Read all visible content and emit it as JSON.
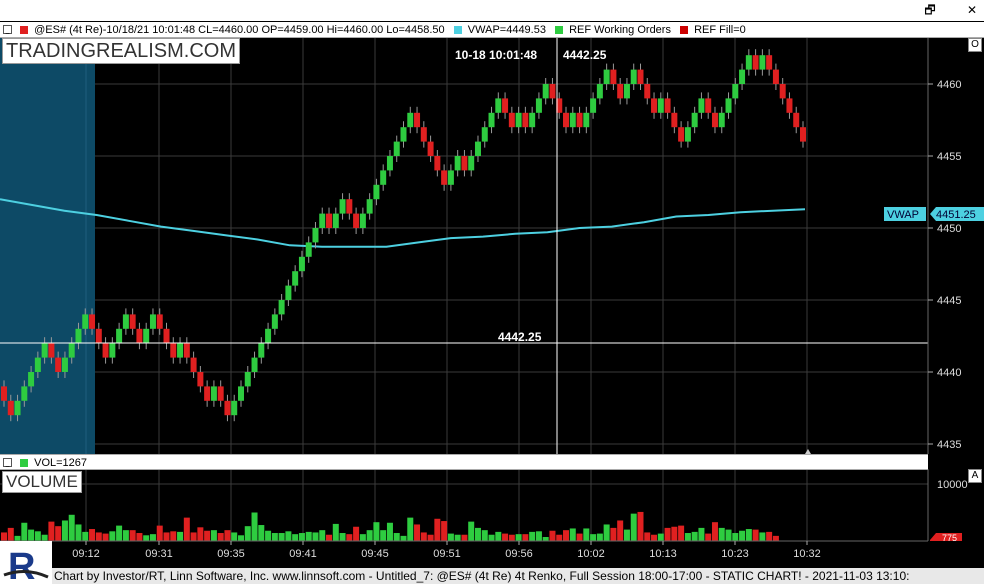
{
  "window": {
    "restore_label": "🗗",
    "close_label": "✕"
  },
  "price_header": {
    "symbol_info": "@ES# (4t Re)-10/18/21 10:01:48 CL=4460.00 OP=4459.00 Hi=4460.00 Lo=4458.50",
    "vwap": "VWAP=4449.53",
    "ref_orders": "REF Working Orders",
    "ref_fill": "REF Fill=0",
    "vwap_color": "#4dd0e1",
    "up_color": "#2ecc40",
    "down_color": "#e02020"
  },
  "watermark": "TRADINGREALISM.COM",
  "crosshair": {
    "time_label": "10-18 10:01:48",
    "price_label": "4442.25",
    "price_tag": "4442.25"
  },
  "price_axis": {
    "ticks": [
      "4460",
      "4455",
      "4450",
      "4445",
      "4440",
      "4435"
    ],
    "vwap_tag": "VWAP",
    "vwap_value": "4451.25",
    "corner": "O"
  },
  "volume_header": {
    "label": "VOL=1267"
  },
  "volume_title": "VOLUME",
  "volume_axis": {
    "ticks": [
      "10000"
    ],
    "value_tag": "775",
    "corner": "A"
  },
  "time_axis": {
    "ticks": [
      "09:12",
      "09:31",
      "09:35",
      "09:41",
      "09:45",
      "09:51",
      "09:56",
      "10:02",
      "10:13",
      "10:23",
      "10:32"
    ]
  },
  "status": "Chart by Investor/RT, Linn Software, Inc. www.linnsoft.com - Untitled_7: @ES# (4t Re) 4t Renko, Full Session 18:00-17:00 - STATIC CHART! - 2021-11-03 13:10:",
  "chart_data": {
    "type": "candlestick",
    "price_range": [
      4433.5,
      4462.5
    ],
    "renko_box": 1.0,
    "bars": [
      {
        "o": 4439,
        "c": 4438
      },
      {
        "o": 4438,
        "c": 4437
      },
      {
        "o": 4437,
        "c": 4438
      },
      {
        "o": 4438,
        "c": 4439
      },
      {
        "o": 4439,
        "c": 4440
      },
      {
        "o": 4440,
        "c": 4441
      },
      {
        "o": 4441,
        "c": 4442
      },
      {
        "o": 4442,
        "c": 4441
      },
      {
        "o": 4441,
        "c": 4440
      },
      {
        "o": 4440,
        "c": 4441
      },
      {
        "o": 4441,
        "c": 4442
      },
      {
        "o": 4442,
        "c": 4443
      },
      {
        "o": 4443,
        "c": 4444
      },
      {
        "o": 4444,
        "c": 4443
      },
      {
        "o": 4443,
        "c": 4442
      },
      {
        "o": 4442,
        "c": 4441
      },
      {
        "o": 4441,
        "c": 4442
      },
      {
        "o": 4442,
        "c": 4443
      },
      {
        "o": 4443,
        "c": 4444
      },
      {
        "o": 4444,
        "c": 4443
      },
      {
        "o": 4443,
        "c": 4442
      },
      {
        "o": 4442,
        "c": 4443
      },
      {
        "o": 4443,
        "c": 4444
      },
      {
        "o": 4444,
        "c": 4443
      },
      {
        "o": 4443,
        "c": 4442
      },
      {
        "o": 4442,
        "c": 4441
      },
      {
        "o": 4441,
        "c": 4442
      },
      {
        "o": 4442,
        "c": 4441
      },
      {
        "o": 4441,
        "c": 4440
      },
      {
        "o": 4440,
        "c": 4439
      },
      {
        "o": 4439,
        "c": 4438
      },
      {
        "o": 4438,
        "c": 4439
      },
      {
        "o": 4439,
        "c": 4438
      },
      {
        "o": 4438,
        "c": 4437
      },
      {
        "o": 4437,
        "c": 4438
      },
      {
        "o": 4438,
        "c": 4439
      },
      {
        "o": 4439,
        "c": 4440
      },
      {
        "o": 4440,
        "c": 4441
      },
      {
        "o": 4441,
        "c": 4442
      },
      {
        "o": 4442,
        "c": 4443
      },
      {
        "o": 4443,
        "c": 4444
      },
      {
        "o": 4444,
        "c": 4445
      },
      {
        "o": 4445,
        "c": 4446
      },
      {
        "o": 4446,
        "c": 4447
      },
      {
        "o": 4447,
        "c": 4448
      },
      {
        "o": 4448,
        "c": 4449
      },
      {
        "o": 4449,
        "c": 4450
      },
      {
        "o": 4450,
        "c": 4451
      },
      {
        "o": 4451,
        "c": 4450
      },
      {
        "o": 4450,
        "c": 4451
      },
      {
        "o": 4451,
        "c": 4452
      },
      {
        "o": 4452,
        "c": 4451
      },
      {
        "o": 4451,
        "c": 4450
      },
      {
        "o": 4450,
        "c": 4451
      },
      {
        "o": 4451,
        "c": 4452
      },
      {
        "o": 4452,
        "c": 4453
      },
      {
        "o": 4453,
        "c": 4454
      },
      {
        "o": 4454,
        "c": 4455
      },
      {
        "o": 4455,
        "c": 4456
      },
      {
        "o": 4456,
        "c": 4457
      },
      {
        "o": 4457,
        "c": 4458
      },
      {
        "o": 4458,
        "c": 4457
      },
      {
        "o": 4457,
        "c": 4456
      },
      {
        "o": 4456,
        "c": 4455
      },
      {
        "o": 4455,
        "c": 4454
      },
      {
        "o": 4454,
        "c": 4453
      },
      {
        "o": 4453,
        "c": 4454
      },
      {
        "o": 4454,
        "c": 4455
      },
      {
        "o": 4455,
        "c": 4454
      },
      {
        "o": 4454,
        "c": 4455
      },
      {
        "o": 4455,
        "c": 4456
      },
      {
        "o": 4456,
        "c": 4457
      },
      {
        "o": 4457,
        "c": 4458
      },
      {
        "o": 4458,
        "c": 4459
      },
      {
        "o": 4459,
        "c": 4458
      },
      {
        "o": 4458,
        "c": 4457
      },
      {
        "o": 4457,
        "c": 4458
      },
      {
        "o": 4458,
        "c": 4457
      },
      {
        "o": 4457,
        "c": 4458
      },
      {
        "o": 4458,
        "c": 4459
      },
      {
        "o": 4459,
        "c": 4460
      },
      {
        "o": 4460,
        "c": 4459
      },
      {
        "o": 4459,
        "c": 4458
      },
      {
        "o": 4458,
        "c": 4457
      },
      {
        "o": 4457,
        "c": 4458
      },
      {
        "o": 4458,
        "c": 4457
      },
      {
        "o": 4457,
        "c": 4458
      },
      {
        "o": 4458,
        "c": 4459
      },
      {
        "o": 4459,
        "c": 4460
      },
      {
        "o": 4460,
        "c": 4461
      },
      {
        "o": 4461,
        "c": 4460
      },
      {
        "o": 4460,
        "c": 4459
      },
      {
        "o": 4459,
        "c": 4460
      },
      {
        "o": 4460,
        "c": 4461
      },
      {
        "o": 4461,
        "c": 4460
      },
      {
        "o": 4460,
        "c": 4459
      },
      {
        "o": 4459,
        "c": 4458
      },
      {
        "o": 4458,
        "c": 4459
      },
      {
        "o": 4459,
        "c": 4458
      },
      {
        "o": 4458,
        "c": 4457
      },
      {
        "o": 4457,
        "c": 4456
      },
      {
        "o": 4456,
        "c": 4457
      },
      {
        "o": 4457,
        "c": 4458
      },
      {
        "o": 4458,
        "c": 4459
      },
      {
        "o": 4459,
        "c": 4458
      },
      {
        "o": 4458,
        "c": 4457
      },
      {
        "o": 4457,
        "c": 4458
      },
      {
        "o": 4458,
        "c": 4459
      },
      {
        "o": 4459,
        "c": 4460
      },
      {
        "o": 4460,
        "c": 4461
      },
      {
        "o": 4461,
        "c": 4462
      },
      {
        "o": 4462,
        "c": 4461
      },
      {
        "o": 4461,
        "c": 4462
      },
      {
        "o": 4462,
        "c": 4461
      },
      {
        "o": 4461,
        "c": 4460
      },
      {
        "o": 4460,
        "c": 4459
      },
      {
        "o": 4459,
        "c": 4458
      },
      {
        "o": 4458,
        "c": 4457
      },
      {
        "o": 4457,
        "c": 4456
      }
    ],
    "vwap": [
      4452,
      4451.6,
      4451.2,
      4450.9,
      4450.5,
      4450.1,
      4449.8,
      4449.5,
      4449.2,
      4448.8,
      4448.7,
      4448.7,
      4448.7,
      4449.0,
      4449.3,
      4449.4,
      4449.6,
      4449.7,
      4450.0,
      4450.1,
      4450.4,
      4450.8,
      4450.9,
      4451.1,
      4451.2,
      4451.3
    ],
    "volume": [
      1500,
      2300,
      900,
      3200,
      2000,
      1700,
      1100,
      3400,
      2600,
      3600,
      4600,
      2900,
      1600,
      2100,
      1500,
      1300,
      1700,
      2700,
      1900,
      1900,
      1400,
      1000,
      1200,
      2700,
      1500,
      1700,
      1600,
      4100,
      1500,
      2400,
      1800,
      1900,
      1400,
      1900,
      1500,
      1000,
      2600,
      5000,
      2800,
      1800,
      1400,
      1400,
      1700,
      1200,
      1400,
      1600,
      1500,
      1900,
      1100,
      3000,
      1400,
      1200,
      2500,
      1200,
      1900,
      3300,
      1900,
      3200,
      1400,
      900,
      4100,
      2900,
      1500,
      1100,
      3900,
      3500,
      1300,
      1100,
      1100,
      3400,
      2300,
      1900,
      1100,
      1600,
      1300,
      1100,
      1200,
      1200,
      1600,
      1700,
      700,
      1800,
      1100,
      1900,
      2200,
      1300,
      2200,
      1200,
      1300,
      2900,
      2300,
      3600,
      2000,
      4800,
      5100,
      1500,
      1100,
      1300,
      2300,
      2500,
      2700,
      1400,
      1600,
      2300,
      1300,
      3300,
      2300,
      2000,
      1400,
      1800,
      2100,
      2000,
      1500,
      1600,
      900
    ],
    "volume_range": [
      0,
      12000
    ]
  }
}
